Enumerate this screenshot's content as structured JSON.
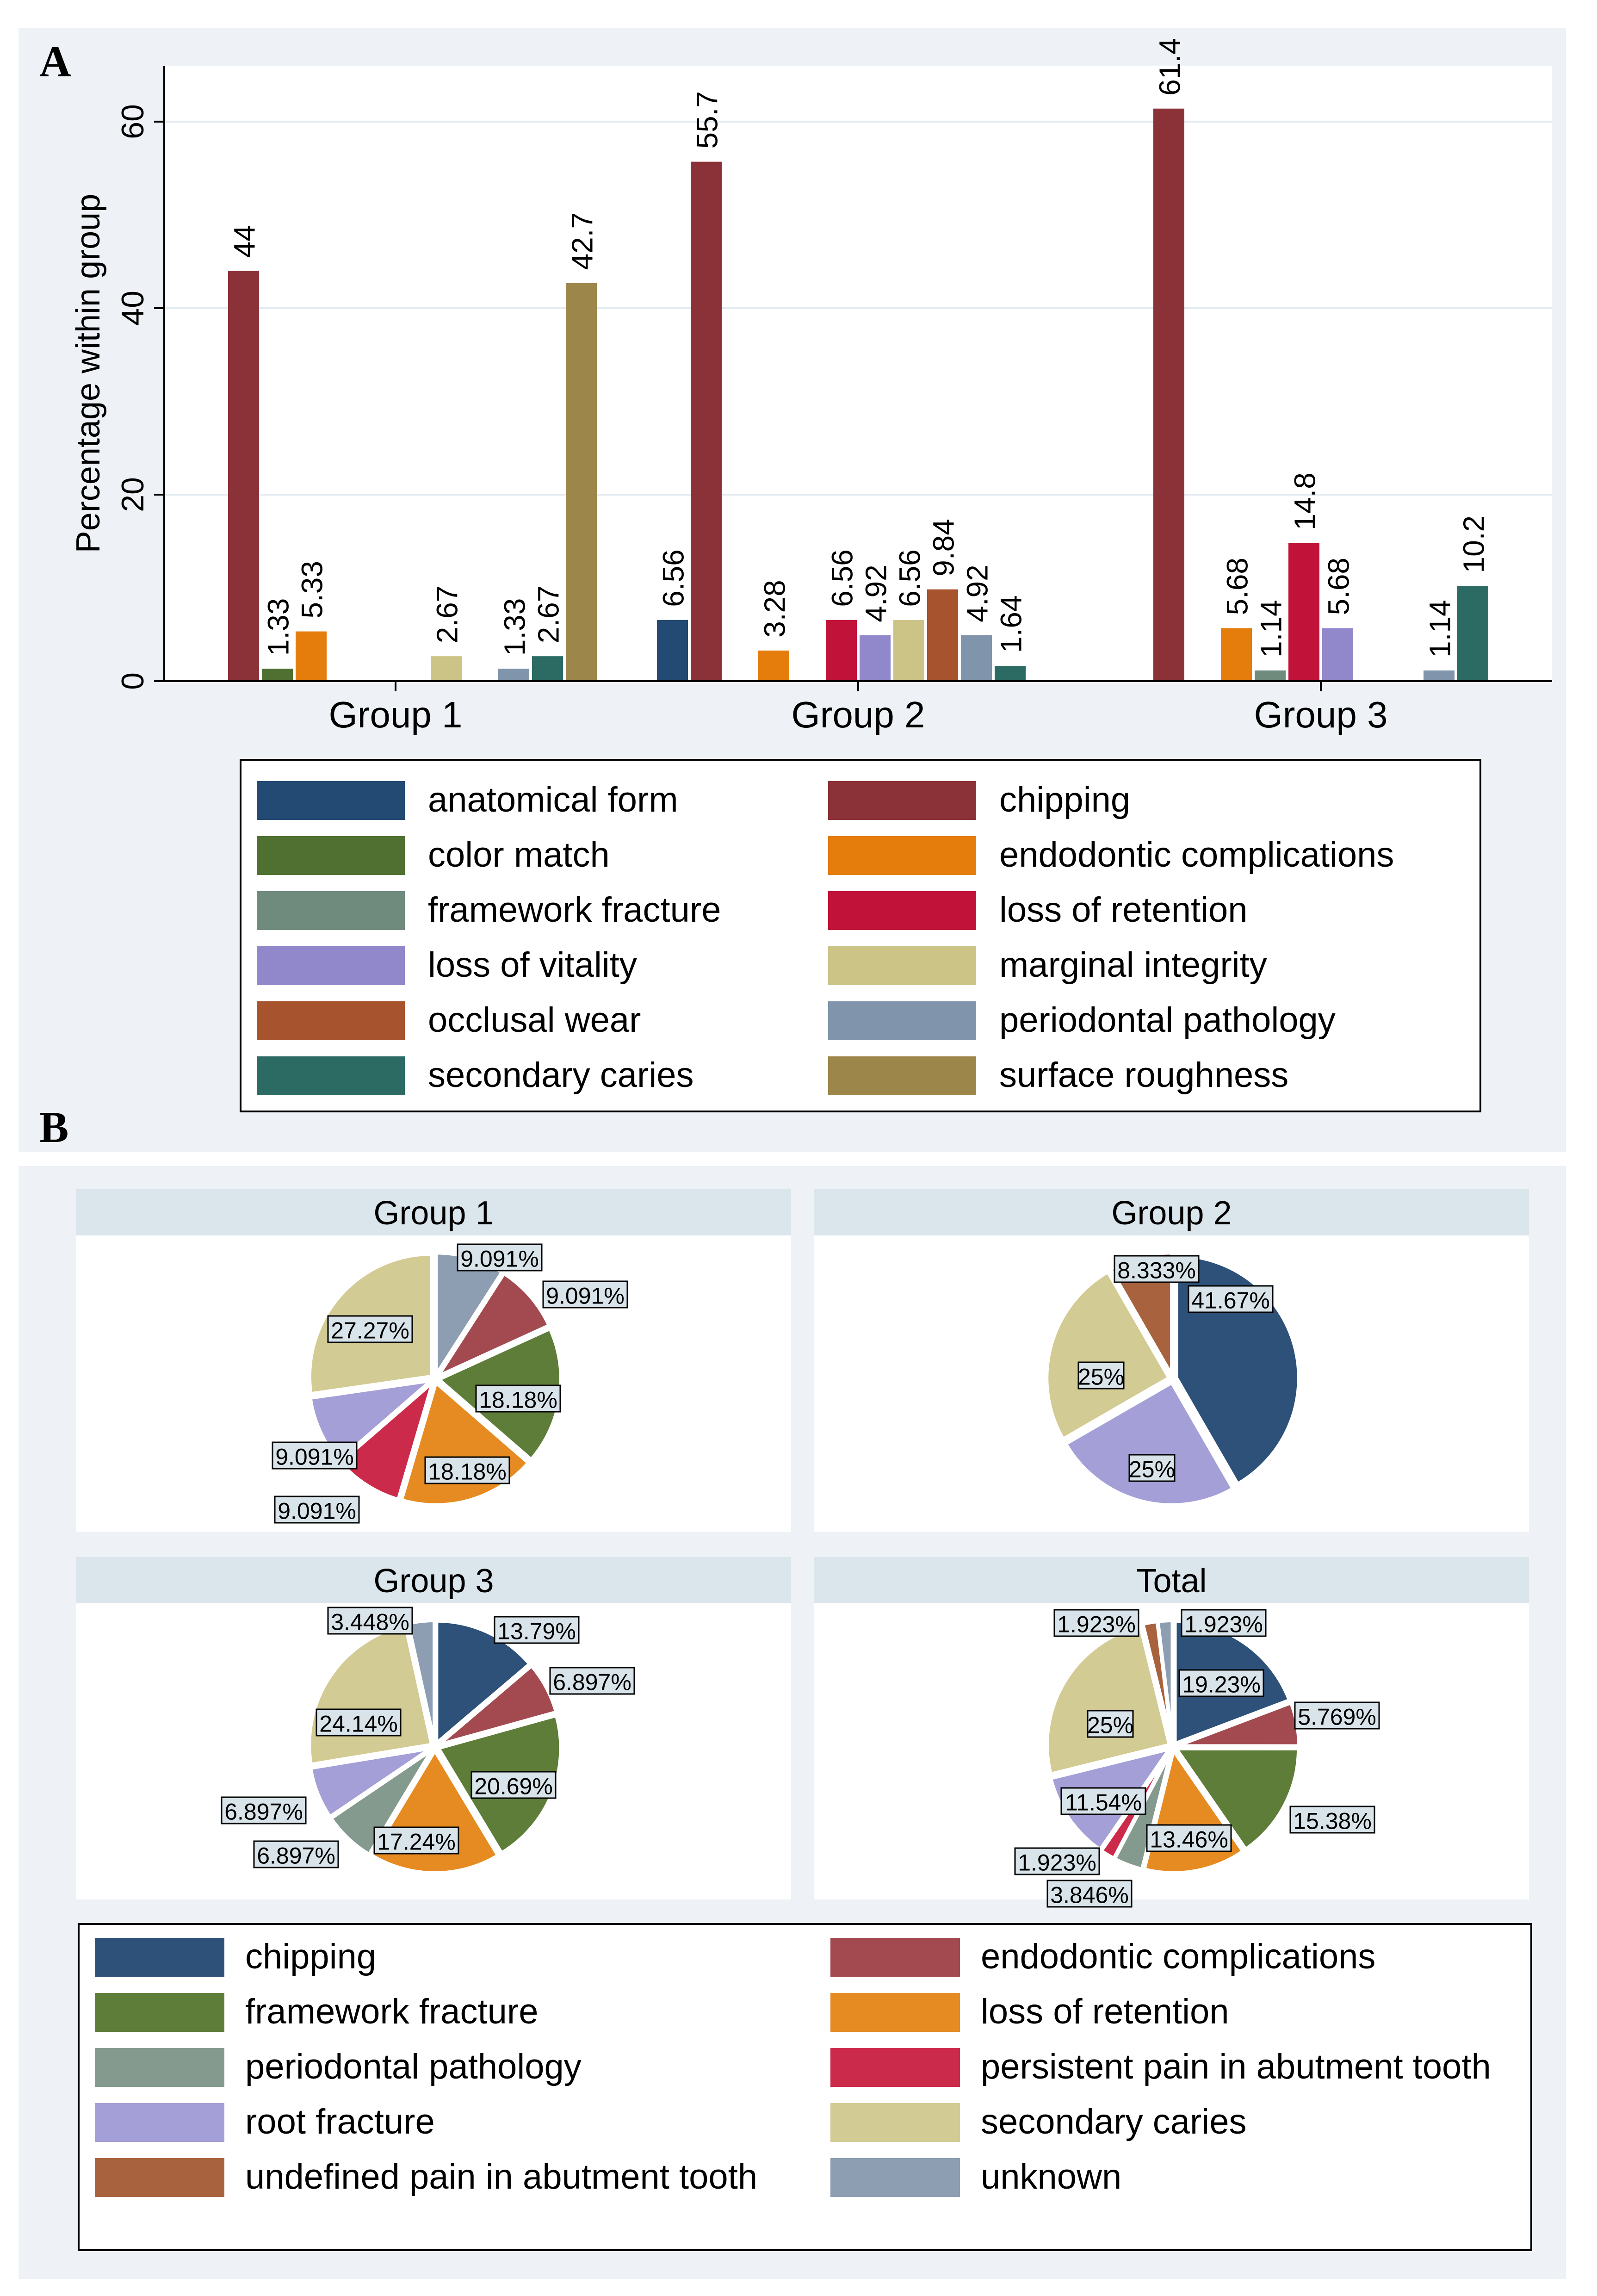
{
  "panels": {
    "a": "A",
    "b": "B"
  },
  "colors": {
    "anatomical form": "#234a72",
    "chipping": "#8b3138",
    "color match": "#4f7030",
    "endodontic complications": "#e47d0c",
    "framework fracture": "#6e8b7e",
    "loss of retention": "#c1123a",
    "loss of vitality": "#9188cc",
    "marginal integrity": "#ccc487",
    "occlusal wear": "#a7542e",
    "periodontal pathology": "#8094ab",
    "secondary caries": "#2c6a64",
    "surface roughness": "#9c864a"
  },
  "pie_colors": {
    "chipping": "#2d5179",
    "endodontic complications": "#a34a51",
    "framework fracture": "#5e7d38",
    "loss of retention": "#e68b22",
    "periodontal pathology": "#859a8f",
    "persistent pain in abutment tooth": "#cc2a4a",
    "root fracture": "#a49fd6",
    "secondary caries": "#d3cb94",
    "undefined pain in abutment tooth": "#a8623d",
    "unknown": "#8d9db2"
  },
  "chart_data": [
    {
      "type": "bar",
      "title": "",
      "xlabel": "",
      "ylabel": "Percentage within group",
      "ylim": [
        0,
        66
      ],
      "yticks": [
        0,
        20,
        40,
        60
      ],
      "grid": true,
      "categories": [
        "Group 1",
        "Group 2",
        "Group 3"
      ],
      "series": [
        {
          "name": "anatomical form",
          "values": [
            null,
            6.56,
            null
          ]
        },
        {
          "name": "chipping",
          "values": [
            44,
            55.7,
            61.4
          ]
        },
        {
          "name": "color match",
          "values": [
            1.33,
            null,
            null
          ]
        },
        {
          "name": "endodontic complications",
          "values": [
            5.33,
            3.28,
            5.68
          ]
        },
        {
          "name": "framework fracture",
          "values": [
            null,
            null,
            1.14
          ]
        },
        {
          "name": "loss of retention",
          "values": [
            null,
            6.56,
            14.8
          ]
        },
        {
          "name": "loss of vitality",
          "values": [
            null,
            4.92,
            5.68
          ]
        },
        {
          "name": "marginal integrity",
          "values": [
            2.67,
            6.56,
            null
          ]
        },
        {
          "name": "occlusal wear",
          "values": [
            null,
            9.84,
            null
          ]
        },
        {
          "name": "periodontal pathology",
          "values": [
            1.33,
            4.92,
            1.14
          ]
        },
        {
          "name": "secondary caries",
          "values": [
            2.67,
            1.64,
            10.2
          ]
        },
        {
          "name": "surface roughness",
          "values": [
            42.7,
            null,
            null
          ]
        }
      ],
      "legend_position": "bottom",
      "legend": [
        "anatomical form",
        "chipping",
        "color match",
        "endodontic complications",
        "framework fracture",
        "loss of retention",
        "loss of vitality",
        "marginal integrity",
        "occlusal wear",
        "periodontal pathology",
        "secondary caries",
        "surface roughness"
      ]
    },
    {
      "type": "pie",
      "legend_position": "bottom",
      "legend": [
        "chipping",
        "endodontic complications",
        "framework fracture",
        "loss of retention",
        "periodontal pathology",
        "persistent pain in abutment tooth",
        "root fracture",
        "secondary caries",
        "undefined pain in abutment tooth",
        "unknown"
      ],
      "pies": [
        {
          "title": "Group 1",
          "slices": [
            {
              "name": "unknown",
              "value": 9.091,
              "label": "9.091%"
            },
            {
              "name": "endodontic complications",
              "value": 9.091,
              "label": "9.091%"
            },
            {
              "name": "framework fracture",
              "value": 18.18,
              "label": "18.18%"
            },
            {
              "name": "loss of retention",
              "value": 18.18,
              "label": "18.18%"
            },
            {
              "name": "persistent pain in abutment tooth",
              "value": 9.091,
              "label": "9.091%"
            },
            {
              "name": "root fracture",
              "value": 9.091,
              "label": "9.091%"
            },
            {
              "name": "secondary caries",
              "value": 27.27,
              "label": "27.27%"
            }
          ]
        },
        {
          "title": "Group 2",
          "slices": [
            {
              "name": "chipping",
              "value": 41.67,
              "label": "41.67%"
            },
            {
              "name": "root fracture",
              "value": 25,
              "label": "25%"
            },
            {
              "name": "secondary caries",
              "value": 25,
              "label": "25%"
            },
            {
              "name": "undefined pain in abutment tooth",
              "value": 8.333,
              "label": "8.333%"
            }
          ]
        },
        {
          "title": "Group 3",
          "slices": [
            {
              "name": "chipping",
              "value": 13.79,
              "label": "13.79%"
            },
            {
              "name": "endodontic complications",
              "value": 6.897,
              "label": "6.897%"
            },
            {
              "name": "framework fracture",
              "value": 20.69,
              "label": "20.69%"
            },
            {
              "name": "loss of retention",
              "value": 17.24,
              "label": "17.24%"
            },
            {
              "name": "periodontal pathology",
              "value": 6.897,
              "label": "6.897%"
            },
            {
              "name": "root fracture",
              "value": 6.897,
              "label": "6.897%"
            },
            {
              "name": "secondary caries",
              "value": 24.14,
              "label": "24.14%"
            },
            {
              "name": "unknown",
              "value": 3.448,
              "label": "3.448%"
            }
          ]
        },
        {
          "title": "Total",
          "slices": [
            {
              "name": "chipping",
              "value": 19.23,
              "label": "19.23%"
            },
            {
              "name": "endodontic complications",
              "value": 5.769,
              "label": "5.769%"
            },
            {
              "name": "framework fracture",
              "value": 15.38,
              "label": "15.38%"
            },
            {
              "name": "loss of retention",
              "value": 13.46,
              "label": "13.46%"
            },
            {
              "name": "periodontal pathology",
              "value": 3.846,
              "label": "3.846%"
            },
            {
              "name": "persistent pain in abutment tooth",
              "value": 1.923,
              "label": "1.923%"
            },
            {
              "name": "root fracture",
              "value": 11.54,
              "label": "11.54%"
            },
            {
              "name": "secondary caries",
              "value": 25,
              "label": "25%"
            },
            {
              "name": "undefined pain in abutment tooth",
              "value": 1.923,
              "label": "1.923%"
            },
            {
              "name": "unknown",
              "value": 1.923,
              "label": "1.923%"
            }
          ]
        }
      ]
    }
  ]
}
